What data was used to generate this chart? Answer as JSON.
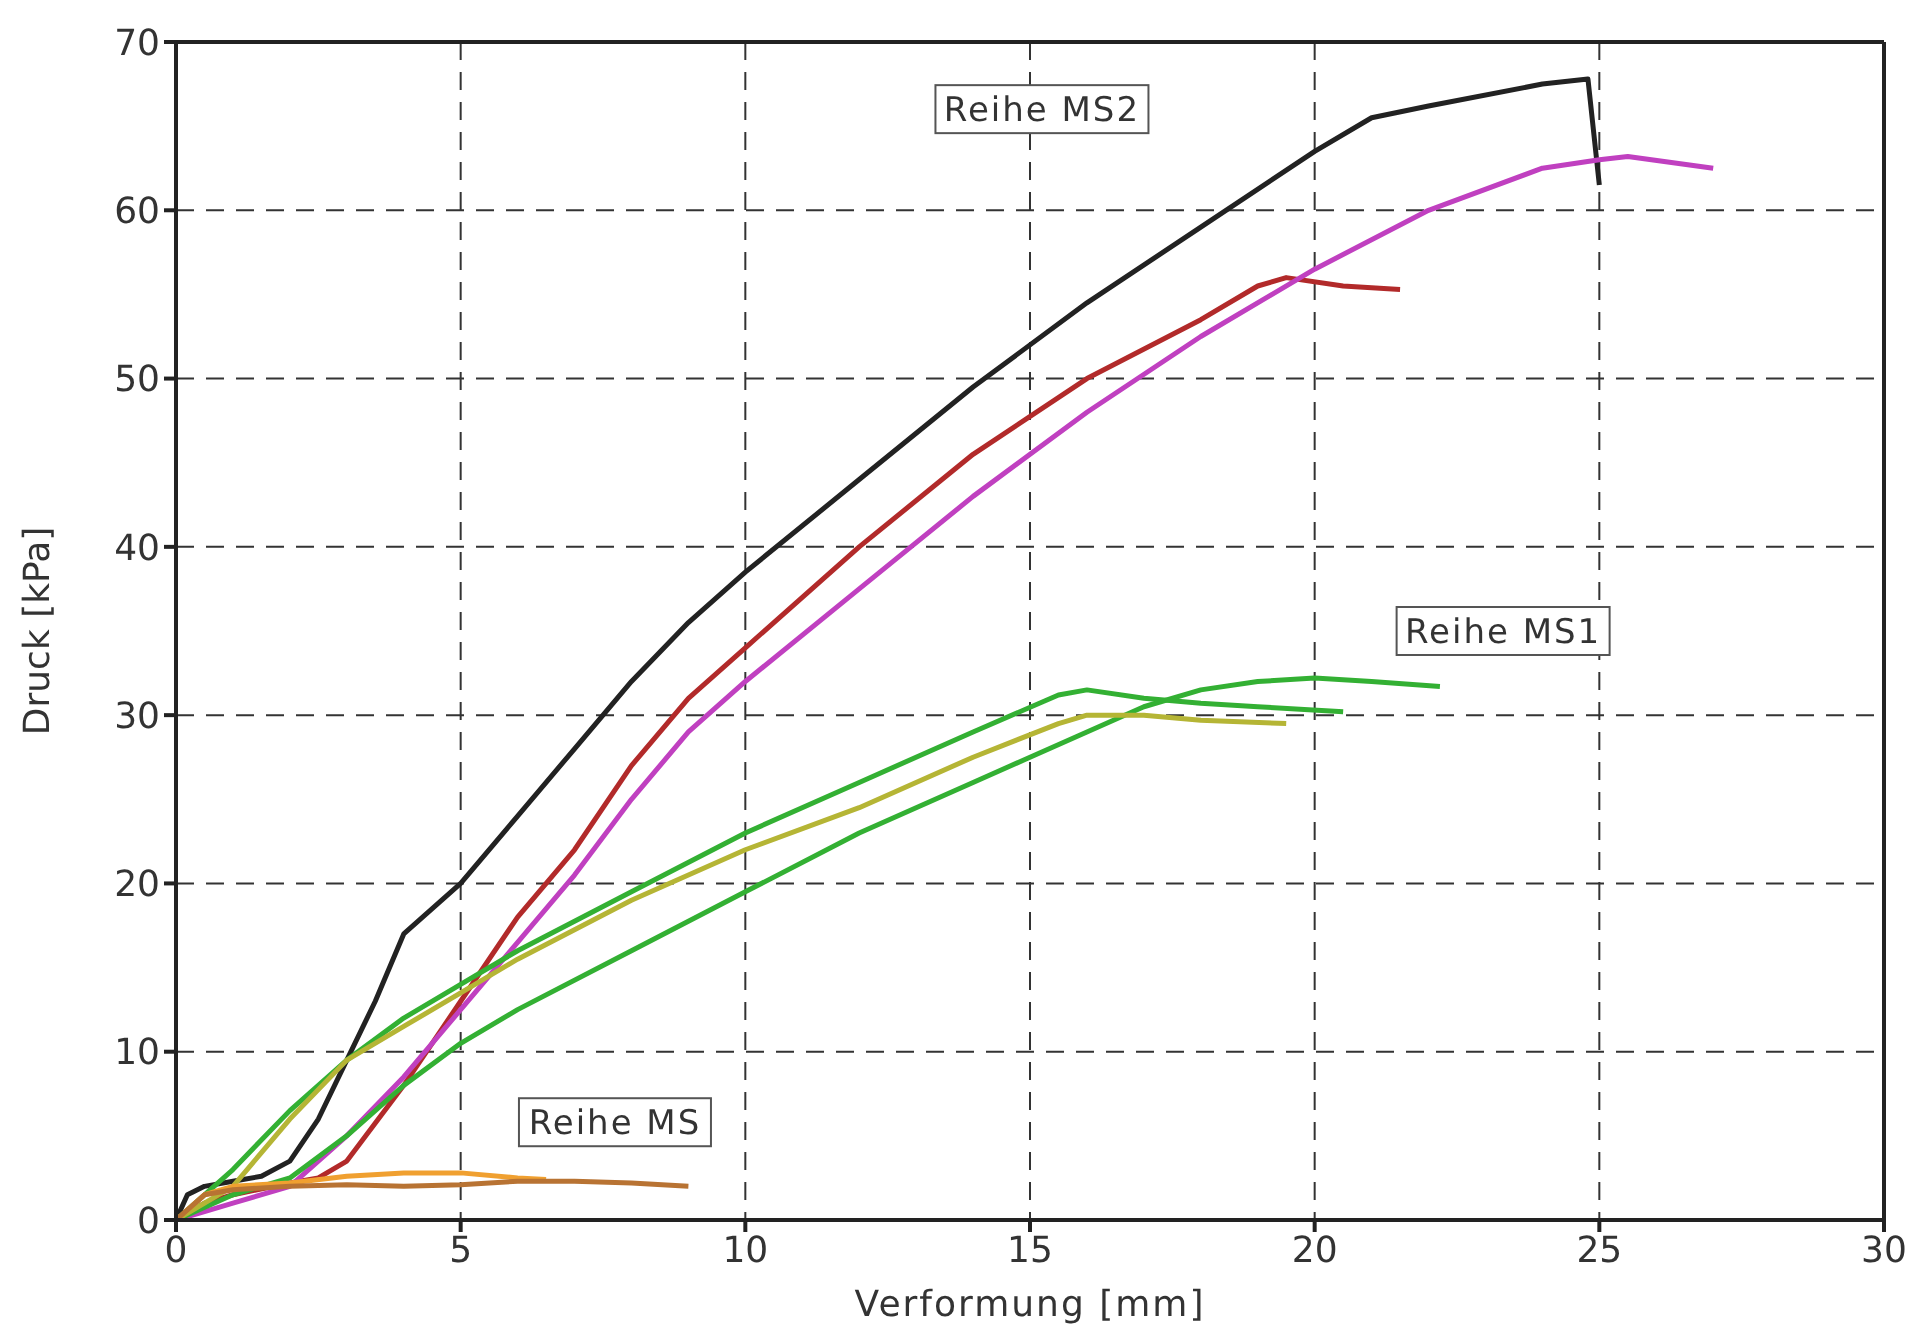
{
  "chart_data": {
    "type": "line",
    "xlabel": "Verformung [mm]",
    "ylabel": "Druck  [kPa]",
    "xlim": [
      0,
      30
    ],
    "xticks": [
      0,
      5,
      10,
      15,
      20,
      25,
      30
    ],
    "ylim": [
      0,
      70
    ],
    "yticks": [
      0,
      10,
      20,
      30,
      40,
      50,
      60,
      70
    ],
    "grid": true,
    "marker": "none",
    "line_style": "solid",
    "annotations": [
      "Reihe MS2",
      "Reihe MS1",
      "Reihe MS"
    ],
    "series": [
      {
        "color": "#222222",
        "x": [
          0,
          0.2,
          0.5,
          1,
          1.5,
          2,
          2.5,
          3,
          3.5,
          4,
          4.5,
          5,
          6,
          7,
          8,
          9,
          10,
          12,
          14,
          16,
          18,
          20,
          21,
          22,
          24,
          24.8,
          25
        ],
        "values": [
          0,
          1.5,
          2,
          2.3,
          2.6,
          3.5,
          6,
          9.5,
          13,
          17,
          18.5,
          20,
          24,
          28,
          32,
          35.5,
          38.5,
          44,
          49.5,
          54.5,
          59,
          63.5,
          65.5,
          66.2,
          67.5,
          67.8,
          61.5
        ]
      },
      {
        "color": "#b22a2a",
        "x": [
          0,
          0.5,
          1,
          2,
          2.5,
          3,
          4,
          5,
          6,
          7,
          8,
          9,
          10,
          12,
          14,
          16,
          18,
          19,
          19.5,
          20.5,
          21.5
        ],
        "values": [
          0,
          1,
          1.5,
          2.2,
          2.5,
          3.5,
          8,
          13,
          18,
          22,
          27,
          31,
          34,
          40,
          45.5,
          50,
          53.5,
          55.5,
          56,
          55.5,
          55.3
        ]
      },
      {
        "color": "#c040c0",
        "x": [
          0,
          0.5,
          1,
          2,
          3,
          4,
          5,
          6,
          7,
          8,
          9,
          10,
          12,
          14,
          16,
          18,
          20,
          22,
          24,
          25,
          25.5,
          27
        ],
        "values": [
          0,
          0.5,
          1,
          2,
          5,
          8.5,
          12.5,
          16.5,
          20.5,
          25,
          29,
          32,
          37.5,
          43,
          48,
          52.5,
          56.5,
          60,
          62.5,
          63,
          63.2,
          62.5
        ]
      },
      {
        "color": "#33b033",
        "x": [
          0,
          0.5,
          1,
          2,
          3,
          4,
          5,
          6,
          8,
          10,
          12,
          14,
          15.5,
          16,
          17,
          18,
          19,
          20.5
        ],
        "values": [
          0,
          1.5,
          3,
          6.5,
          9.5,
          12,
          14,
          16,
          19.5,
          23,
          26,
          29,
          31.2,
          31.5,
          31,
          30.7,
          30.5,
          30.2
        ]
      },
      {
        "color": "#33b033",
        "x": [
          0,
          1,
          2,
          3,
          4,
          5,
          6,
          8,
          10,
          12,
          14,
          16,
          17,
          18,
          19,
          20,
          21,
          22.2
        ],
        "values": [
          0,
          1.5,
          2.5,
          5,
          8,
          10.5,
          12.5,
          16,
          19.5,
          23,
          26,
          29,
          30.5,
          31.5,
          32,
          32.2,
          32,
          31.7
        ]
      },
      {
        "color": "#b5b535",
        "x": [
          0,
          0.5,
          1,
          2,
          3,
          4,
          5,
          6,
          8,
          10,
          12,
          14,
          15.5,
          16,
          17,
          18,
          19.5
        ],
        "values": [
          0,
          1,
          2,
          6,
          9.5,
          11.5,
          13.5,
          15.5,
          19,
          22,
          24.5,
          27.5,
          29.5,
          30,
          30,
          29.7,
          29.5
        ]
      },
      {
        "color": "#f0a030",
        "x": [
          0,
          0.5,
          1,
          2,
          3,
          4,
          5,
          6,
          6.5
        ],
        "values": [
          0,
          1.5,
          2,
          2.2,
          2.6,
          2.8,
          2.8,
          2.5,
          2.4
        ]
      },
      {
        "color": "#b87333",
        "x": [
          0,
          0.5,
          1,
          2,
          3,
          4,
          5,
          6,
          7,
          8,
          9
        ],
        "values": [
          0,
          1.5,
          1.8,
          2,
          2.1,
          2,
          2.1,
          2.3,
          2.3,
          2.2,
          2
        ]
      }
    ]
  }
}
